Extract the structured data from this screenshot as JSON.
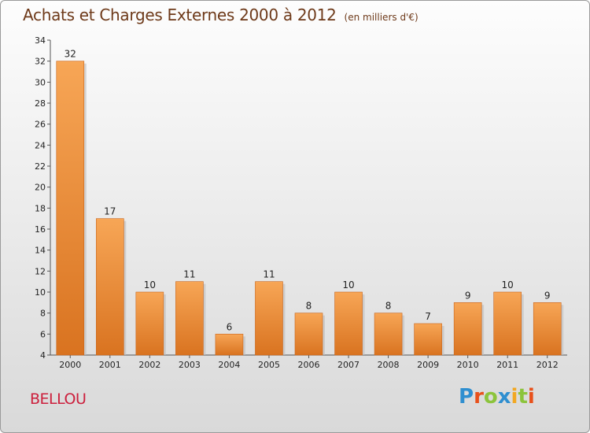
{
  "title": "Achats et Charges Externes 2000 à 2012",
  "unit_note": "(en milliers d'€)",
  "commune": "BELLOU",
  "logo": {
    "text": "Proxiti",
    "letters": [
      {
        "ch": "P",
        "color": "#2f8fd0"
      },
      {
        "ch": "r",
        "color": "#e8511b"
      },
      {
        "ch": "o",
        "color": "#8cc43c"
      },
      {
        "ch": "x",
        "color": "#2f8fd0"
      },
      {
        "ch": "i",
        "color": "#f2a823"
      },
      {
        "ch": "t",
        "color": "#8cc43c"
      },
      {
        "ch": "i",
        "color": "#e8511b"
      }
    ]
  },
  "colors": {
    "bar_light": "#f7a656",
    "bar_dark": "#d97320",
    "title": "#6e3a1a",
    "commune": "#cc1f3c"
  },
  "chart_data": {
    "type": "bar",
    "categories": [
      "2000",
      "2001",
      "2002",
      "2003",
      "2004",
      "2005",
      "2006",
      "2007",
      "2008",
      "2009",
      "2010",
      "2011",
      "2012"
    ],
    "values": [
      32,
      17,
      10,
      11,
      6,
      11,
      8,
      10,
      8,
      7,
      9,
      10,
      9
    ],
    "data_labels": [
      "32",
      "17",
      "10",
      "11",
      "6",
      "11",
      "8",
      "10",
      "8",
      "7",
      "9",
      "10",
      "9"
    ],
    "ylim": [
      4,
      34
    ],
    "yticks": [
      4,
      6,
      8,
      10,
      12,
      14,
      16,
      18,
      20,
      22,
      24,
      26,
      28,
      30,
      32,
      34
    ],
    "grid": false,
    "legend": "none"
  }
}
